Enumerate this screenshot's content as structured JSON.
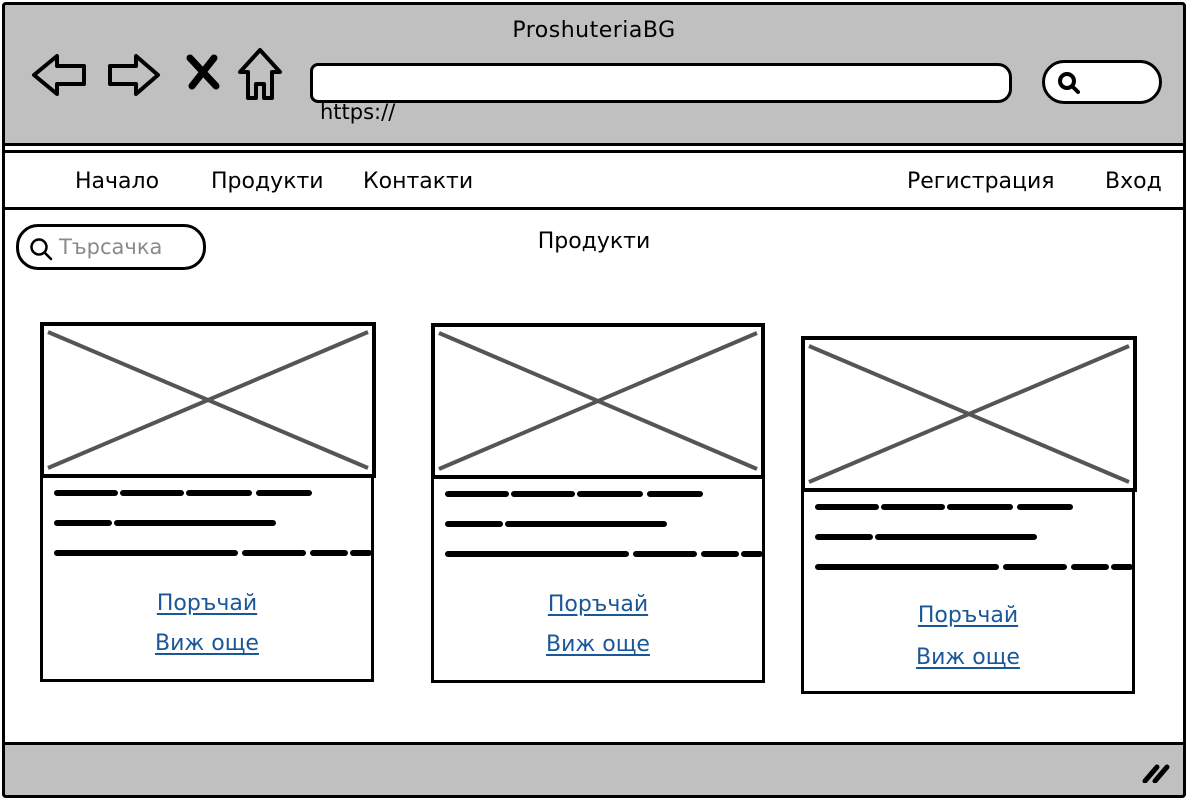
{
  "window": {
    "title": "ProshuteriaBG"
  },
  "address_bar": {
    "value": "https://"
  },
  "nav": {
    "left": [
      "Начало",
      "Продукти",
      "Контакти"
    ],
    "right": [
      "Регистрация",
      "Вход"
    ]
  },
  "search": {
    "placeholder": "Търсачка"
  },
  "page": {
    "heading": "Продукти"
  },
  "products": [
    {
      "order_label": "Поръчай",
      "more_label": "Виж още"
    },
    {
      "order_label": "Поръчай",
      "more_label": "Виж още"
    },
    {
      "order_label": "Поръчай",
      "more_label": "Виж още"
    }
  ],
  "icons": {
    "back": "back-arrow-icon",
    "forward": "forward-arrow-icon",
    "stop": "close-icon",
    "home": "home-icon",
    "search": "search-icon",
    "resize": "resize-grip-icon"
  },
  "colors": {
    "chrome": "#c0c0c0",
    "link": "#1a5799",
    "placeholder": "#8a8a8a"
  }
}
